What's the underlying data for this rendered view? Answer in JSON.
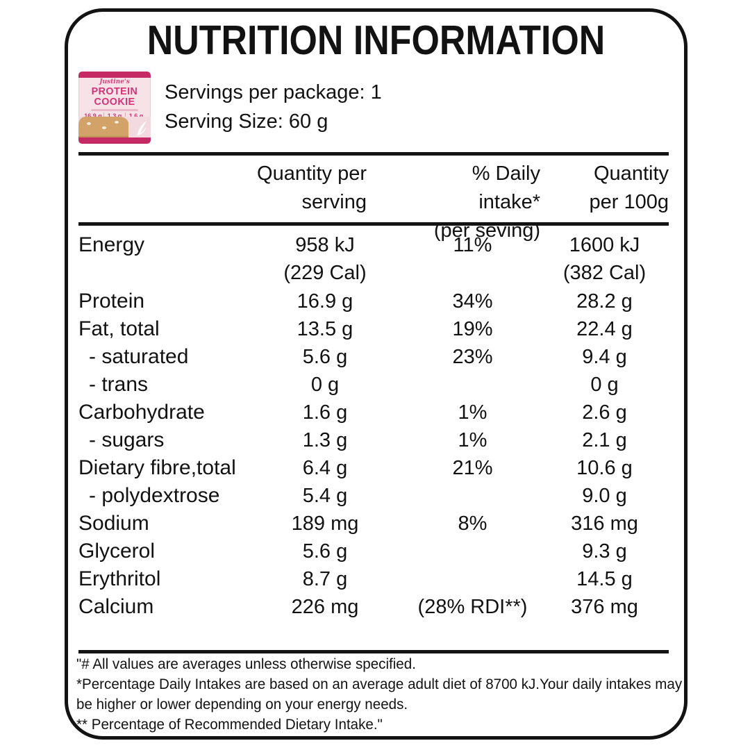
{
  "title": "NUTRITION INFORMATION",
  "product": {
    "servings_line": "Servings per package: 1",
    "serving_size_line": "Serving Size: 60 g",
    "package": {
      "brand": "Justine's",
      "name_line1": "PROTEIN",
      "name_line2": "COOKIE",
      "macros": [
        "16.9 g",
        "1.3 g",
        "1.6 g"
      ],
      "accent_color": "#c52a64",
      "body_color": "#f7e2e8",
      "cookie_color": "#d2a268"
    }
  },
  "table": {
    "headers": {
      "col2_line1": "Quantity per",
      "col2_line2": "serving",
      "col3_line1": "% Daily  intake*",
      "col3_line2": "(per seving)",
      "col4_line1": "Quantity",
      "col4_line2": "per 100g"
    },
    "rows": [
      {
        "label": "Energy",
        "indent": false,
        "qty": "958 kJ",
        "qty_sub": "(229 Cal)",
        "di": "11%",
        "per100": "1600 kJ",
        "per100_sub": "(382 Cal)"
      },
      {
        "label": "Protein",
        "indent": false,
        "qty": "16.9 g",
        "di": "34%",
        "per100": "28.2 g"
      },
      {
        "label": "Fat, total",
        "indent": false,
        "qty": "13.5 g",
        "di": "19%",
        "per100": "22.4 g"
      },
      {
        "label": "- saturated",
        "indent": true,
        "qty": "5.6 g",
        "di": "23%",
        "per100": "9.4 g"
      },
      {
        "label": "- trans",
        "indent": true,
        "qty": "0 g",
        "di": "",
        "per100": "0 g"
      },
      {
        "label": "Carbohydrate",
        "indent": false,
        "qty": "1.6 g",
        "di": "1%",
        "per100": "2.6 g"
      },
      {
        "label": "- sugars",
        "indent": true,
        "qty": "1.3 g",
        "di": "1%",
        "per100": "2.1 g"
      },
      {
        "label": "Dietary fibre,total",
        "indent": false,
        "qty": "6.4 g",
        "di": "21%",
        "per100": "10.6 g"
      },
      {
        "label": "- polydextrose",
        "indent": true,
        "qty": "5.4 g",
        "di": "",
        "per100": "9.0 g"
      },
      {
        "label": "Sodium",
        "indent": false,
        "qty": "189 mg",
        "di": "8%",
        "per100": "316 mg"
      },
      {
        "label": "Glycerol",
        "indent": false,
        "qty": "5.6 g",
        "di": "",
        "per100": "9.3 g"
      },
      {
        "label": "Erythritol",
        "indent": false,
        "qty": "8.7 g",
        "di": "",
        "per100": "14.5 g"
      },
      {
        "label": "Calcium",
        "indent": false,
        "qty": "226 mg",
        "di": "(28% RDI**)",
        "per100": "376 mg"
      }
    ]
  },
  "footnotes": [
    "\"# All values are averages unless otherwise specified.",
    "*Percentage Daily Intakes are based on an average adult diet of 8700 kJ.Your daily intakes may",
    "be higher or lower depending on your energy needs.",
    "** Percentage of Recommended Dietary Intake.\""
  ]
}
